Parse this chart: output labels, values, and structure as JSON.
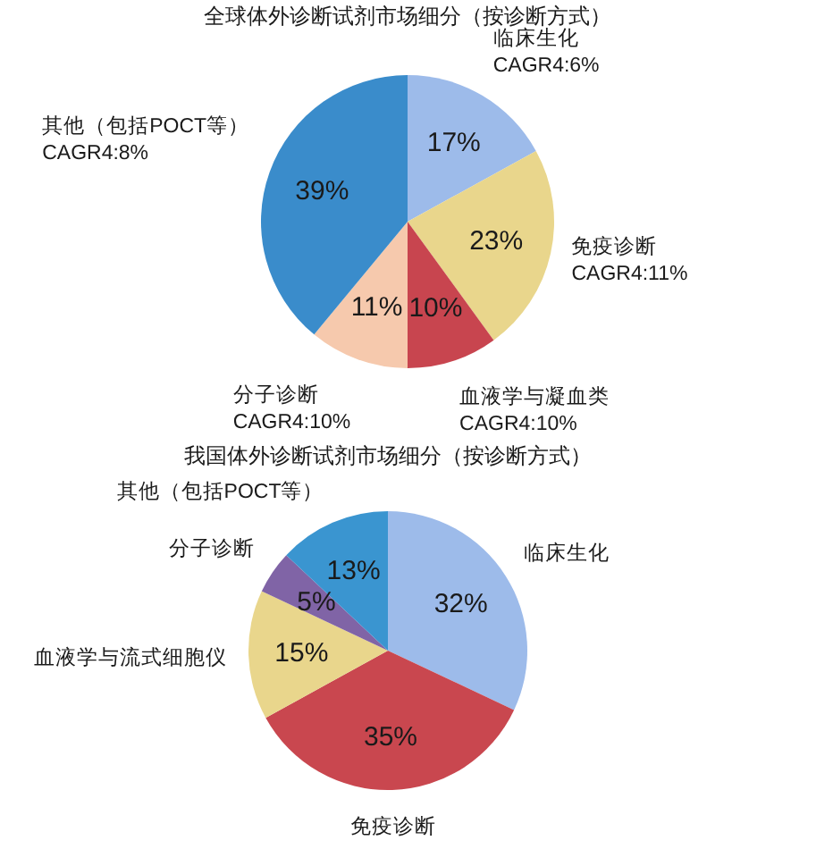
{
  "chart_data": [
    {
      "type": "pie",
      "title": "全球体外诊断试剂市场细分（按诊断方式）",
      "categories": [
        "临床生化",
        "免疫诊断",
        "血液学与凝血类",
        "分子诊断",
        "其他（包括POCT等）"
      ],
      "values": [
        17,
        23,
        10,
        11,
        39
      ],
      "value_labels": [
        "17%",
        "23%",
        "10%",
        "11%",
        "39%"
      ],
      "colors": [
        "#9dbbea",
        "#e9d68c",
        "#c8454f",
        "#f6c9ad",
        "#3a8ccb"
      ],
      "annotations": [
        "CAGR4:6%",
        "CAGR4:11%",
        "CAGR4:10%",
        "CAGR4:10%",
        "CAGR4:8%"
      ]
    },
    {
      "type": "pie",
      "title": "我国体外诊断试剂市场细分（按诊断方式）",
      "categories": [
        "临床生化",
        "免疫诊断",
        "血液学与流式细胞仪",
        "分子诊断",
        "其他（包括POCT等）"
      ],
      "values": [
        32,
        35,
        15,
        5,
        13
      ],
      "value_labels": [
        "32%",
        "35%",
        "15%",
        "5%",
        "13%"
      ],
      "colors": [
        "#9dbbea",
        "#c9474f",
        "#e9d68c",
        "#8064a6",
        "#3a95d0"
      ]
    }
  ]
}
